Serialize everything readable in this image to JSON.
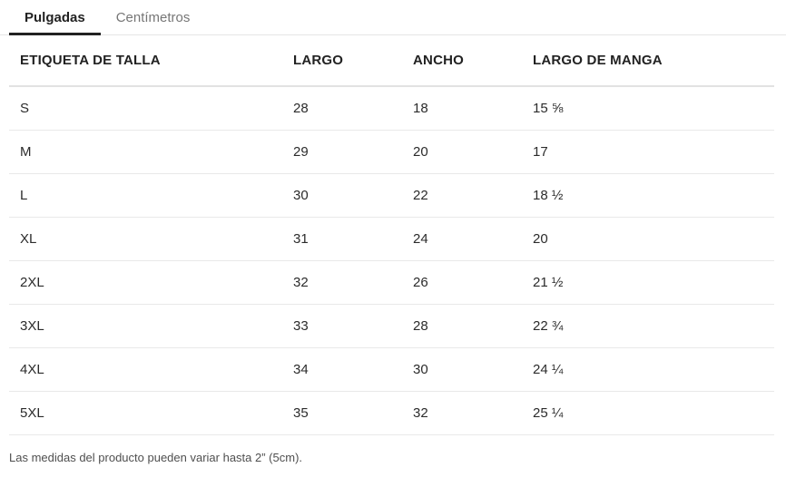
{
  "tabs": [
    {
      "label": "Pulgadas",
      "active": true
    },
    {
      "label": "Centímetros",
      "active": false
    }
  ],
  "table": {
    "headers": [
      "ETIQUETA DE TALLA",
      "LARGO",
      "ANCHO",
      "LARGO DE MANGA"
    ],
    "rows": [
      [
        "S",
        "28",
        "18",
        "15 ⅝"
      ],
      [
        "M",
        "29",
        "20",
        "17"
      ],
      [
        "L",
        "30",
        "22",
        "18 ½"
      ],
      [
        "XL",
        "31",
        "24",
        "20"
      ],
      [
        "2XL",
        "32",
        "26",
        "21 ½"
      ],
      [
        "3XL",
        "33",
        "28",
        "22 ¾"
      ],
      [
        "4XL",
        "34",
        "30",
        "24 ¼"
      ],
      [
        "5XL",
        "35",
        "32",
        "25 ¼"
      ]
    ]
  },
  "footer": {
    "note": "Las medidas del producto pueden variar hasta 2” (5cm)."
  },
  "colors": {
    "active_tab_text": "#222222",
    "active_tab_underline": "#222222",
    "inactive_tab_text": "#767676",
    "tabbar_border": "#e5e5e5",
    "header_border": "#e2e2e2",
    "row_border": "#e9e9e9",
    "footnote_text": "#4f4f4f"
  }
}
